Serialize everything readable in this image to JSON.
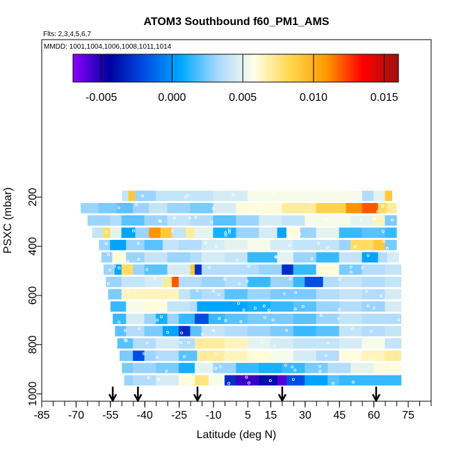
{
  "chart_data": {
    "type": "heatmap",
    "title": "ATOM3 Southbound f60_PM1_AMS",
    "flights_label": "Flts: 2,3,4,5,6,7",
    "mmdd_label": "MMDD: 1001,1004,1006,1008,1011,1014",
    "xlabel": "Latitude (deg N)",
    "ylabel": "PSXC (mbar)",
    "xlim": [
      -85,
      85
    ],
    "ylim": [
      1030,
      -440
    ],
    "x_ticks": [
      -85,
      -70,
      -55,
      -40,
      -25,
      -10,
      5,
      15,
      30,
      45,
      60,
      75
    ],
    "x_tick_labels": [
      "-85",
      "-70",
      "-55",
      "-40",
      "-25",
      "-10",
      "5",
      "15",
      "30",
      "45",
      "60",
      "75"
    ],
    "y_ticks": [
      200,
      400,
      600,
      800,
      1000
    ],
    "y_tick_labels": [
      "200",
      "400",
      "600",
      "800",
      "1000"
    ],
    "colorbar": {
      "range": [
        -0.007,
        0.016
      ],
      "ticks": [
        -0.005,
        0.0,
        0.005,
        0.01,
        0.015
      ],
      "tick_labels": [
        "-0.005",
        "0.000",
        "0.005",
        "0.010",
        "0.015"
      ],
      "colors": [
        "#8b00ff",
        "#00009e",
        "#0050e6",
        "#00aaff",
        "#aad8ff",
        "#ffffe8",
        "#ffd850",
        "#ff9a00",
        "#ff0000",
        "#a01010"
      ]
    },
    "arrows_lat": [
      -54,
      -43,
      -17,
      20,
      61
    ],
    "layers": [
      {
        "p": 195,
        "lat_min": -50,
        "lat_max": 68,
        "segments": [
          [
            -50,
            0.004
          ],
          [
            -47,
            0.009
          ],
          [
            -44,
            0.003
          ],
          [
            -35,
            0.004
          ],
          [
            -10,
            0.0045
          ],
          [
            5,
            0.0055
          ],
          [
            22,
            0.0055
          ],
          [
            40,
            0.0055
          ],
          [
            55,
            0.0035
          ],
          [
            60,
            0.005
          ],
          [
            65,
            0.009
          ]
        ]
      },
      {
        "p": 245,
        "lat_min": -68,
        "lat_max": 70,
        "segments": [
          [
            -68,
            0.003
          ],
          [
            -60,
            0.0025
          ],
          [
            -52,
            0.002
          ],
          [
            -45,
            0.003
          ],
          [
            -38,
            0.004
          ],
          [
            -30,
            0.003
          ],
          [
            -20,
            0.0025
          ],
          [
            -10,
            0.0045
          ],
          [
            0,
            0.006
          ],
          [
            20,
            0.007
          ],
          [
            35,
            0.0085
          ],
          [
            48,
            0.011
          ],
          [
            55,
            0.012
          ],
          [
            62,
            0.008
          ],
          [
            66,
            0.007
          ]
        ]
      },
      {
        "p": 295,
        "lat_min": -65,
        "lat_max": 70,
        "segments": [
          [
            -65,
            0.003
          ],
          [
            -55,
            0.0035
          ],
          [
            -50,
            0.002
          ],
          [
            -40,
            0.003
          ],
          [
            -30,
            0.004
          ],
          [
            -20,
            0.0035
          ],
          [
            -10,
            0.002
          ],
          [
            0,
            0.003
          ],
          [
            10,
            0.0045
          ],
          [
            20,
            0.004
          ],
          [
            30,
            0.0055
          ],
          [
            40,
            0.0055
          ],
          [
            50,
            0.005
          ],
          [
            60,
            0.0065
          ],
          [
            65,
            0.0025
          ]
        ]
      },
      {
        "p": 345,
        "lat_min": -63,
        "lat_max": 70,
        "segments": [
          [
            -63,
            0.004
          ],
          [
            -58,
            0.008
          ],
          [
            -55,
            0.005
          ],
          [
            -50,
            0.0005
          ],
          [
            -44,
            0.003
          ],
          [
            -38,
            0.011
          ],
          [
            -33,
            0.009
          ],
          [
            -28,
            0.004
          ],
          [
            -22,
            0.007
          ],
          [
            -18,
            0.005
          ],
          [
            -10,
            0.001
          ],
          [
            0,
            0.003
          ],
          [
            10,
            0.0045
          ],
          [
            18,
            0.0005
          ],
          [
            22,
            0.006
          ],
          [
            28,
            0.003
          ],
          [
            35,
            0.005
          ],
          [
            45,
            0.0015
          ],
          [
            55,
            0.002
          ],
          [
            65,
            0.0015
          ]
        ]
      },
      {
        "p": 395,
        "lat_min": -60,
        "lat_max": 70,
        "segments": [
          [
            -60,
            0.003
          ],
          [
            -55,
            0.0005
          ],
          [
            -48,
            0.003
          ],
          [
            -40,
            0.002
          ],
          [
            -32,
            0.004
          ],
          [
            -25,
            0.0035
          ],
          [
            -15,
            0.0045
          ],
          [
            -5,
            0.005
          ],
          [
            5,
            0.0055
          ],
          [
            15,
            0.0045
          ],
          [
            25,
            0.004
          ],
          [
            35,
            0.004
          ],
          [
            45,
            0.003
          ],
          [
            50,
            0.008
          ],
          [
            60,
            0.009
          ],
          [
            65,
            0.0025
          ]
        ]
      },
      {
        "p": 445,
        "lat_min": -59,
        "lat_max": 71,
        "segments": [
          [
            -59,
            0.003
          ],
          [
            -54,
            0.006
          ],
          [
            -48,
            0.003
          ],
          [
            -40,
            0.004
          ],
          [
            -30,
            0.003
          ],
          [
            -20,
            0.0035
          ],
          [
            -15,
            0.0045
          ],
          [
            -5,
            0.004
          ],
          [
            5,
            0.0015
          ],
          [
            18,
            0.005
          ],
          [
            25,
            0.003
          ],
          [
            35,
            0.0015
          ],
          [
            45,
            0.004
          ],
          [
            55,
            0.0005
          ],
          [
            62,
            0.0035
          ],
          [
            66,
            0.0045
          ]
        ]
      },
      {
        "p": 495,
        "lat_min": -58,
        "lat_max": 72,
        "segments": [
          [
            -58,
            0.003
          ],
          [
            -53,
            0.0005
          ],
          [
            -50,
            0.008
          ],
          [
            -45,
            0.003
          ],
          [
            -40,
            0.002
          ],
          [
            -30,
            0.0045
          ],
          [
            -20,
            0.009
          ],
          [
            -18,
            -0.003
          ],
          [
            -15,
            0.0035
          ],
          [
            0,
            0.0035
          ],
          [
            10,
            0.003
          ],
          [
            20,
            -0.003
          ],
          [
            25,
            0.0015
          ],
          [
            35,
            0.006
          ],
          [
            45,
            0.0025
          ],
          [
            55,
            0.0035
          ],
          [
            65,
            0.004
          ]
        ]
      },
      {
        "p": 545,
        "lat_min": -57,
        "lat_max": 72,
        "segments": [
          [
            -57,
            0.003
          ],
          [
            -50,
            0.004
          ],
          [
            -40,
            0.0045
          ],
          [
            -32,
            0.007
          ],
          [
            -28,
            0.012
          ],
          [
            -25,
            0.0035
          ],
          [
            -15,
            0.003
          ],
          [
            -5,
            0.0035
          ],
          [
            5,
            0.0015
          ],
          [
            15,
            0.003
          ],
          [
            25,
            0.0015
          ],
          [
            30,
            -0.002
          ],
          [
            38,
            0.0035
          ],
          [
            45,
            0.004
          ],
          [
            55,
            0.0035
          ],
          [
            65,
            0.004
          ]
        ]
      },
      {
        "p": 595,
        "lat_min": -56,
        "lat_max": 72,
        "segments": [
          [
            -56,
            0.0025
          ],
          [
            -50,
            0.0065
          ],
          [
            -35,
            0.0065
          ],
          [
            -25,
            0.004
          ],
          [
            -20,
            0.003
          ],
          [
            -15,
            0.0035
          ],
          [
            -5,
            0.002
          ],
          [
            5,
            0.003
          ],
          [
            15,
            0.0025
          ],
          [
            25,
            0.0025
          ],
          [
            35,
            0.0035
          ],
          [
            45,
            0.004
          ],
          [
            55,
            0.0035
          ],
          [
            65,
            0.0045
          ]
        ]
      },
      {
        "p": 645,
        "lat_min": -55,
        "lat_max": 72,
        "segments": [
          [
            -55,
            0.0015
          ],
          [
            -48,
            0.0055
          ],
          [
            -40,
            0.006
          ],
          [
            -30,
            0.004
          ],
          [
            -20,
            0.0035
          ],
          [
            -17,
            0.0005
          ],
          [
            -5,
            0.0005
          ],
          [
            5,
            0.001
          ],
          [
            15,
            0.0015
          ],
          [
            25,
            0.002
          ],
          [
            35,
            0.003
          ],
          [
            45,
            0.0035
          ],
          [
            55,
            0.003
          ],
          [
            65,
            0.0045
          ]
        ]
      },
      {
        "p": 695,
        "lat_min": -54,
        "lat_max": 72,
        "segments": [
          [
            -54,
            0.0015
          ],
          [
            -48,
            0.0045
          ],
          [
            -40,
            0.003
          ],
          [
            -35,
            0.001
          ],
          [
            -30,
            0.003
          ],
          [
            -25,
            0.0015
          ],
          [
            -18,
            -0.002
          ],
          [
            -12,
            0.0015
          ],
          [
            -5,
            0.002
          ],
          [
            5,
            0.0025
          ],
          [
            15,
            0.0025
          ],
          [
            25,
            0.002
          ],
          [
            35,
            0.003
          ],
          [
            45,
            0.004
          ],
          [
            55,
            0.0035
          ],
          [
            65,
            0.0035
          ]
        ]
      },
      {
        "p": 745,
        "lat_min": -53,
        "lat_max": 72,
        "segments": [
          [
            -53,
            0.002
          ],
          [
            -48,
            0.0035
          ],
          [
            -40,
            0.0025
          ],
          [
            -32,
            0.0005
          ],
          [
            -25,
            -0.003
          ],
          [
            -20,
            0.002
          ],
          [
            -15,
            0.004
          ],
          [
            -5,
            0.0035
          ],
          [
            5,
            0.003
          ],
          [
            15,
            0.0025
          ],
          [
            25,
            0.0015
          ],
          [
            35,
            0.002
          ],
          [
            45,
            0.004
          ],
          [
            55,
            0.0035
          ],
          [
            65,
            0.004
          ]
        ]
      },
      {
        "p": 795,
        "lat_min": -52,
        "lat_max": 72,
        "segments": [
          [
            -52,
            0.002
          ],
          [
            -45,
            0.0035
          ],
          [
            -35,
            0.0045
          ],
          [
            -25,
            0.0035
          ],
          [
            -18,
            0.007
          ],
          [
            -5,
            0.0065
          ],
          [
            5,
            0.005
          ],
          [
            15,
            0.0045
          ],
          [
            25,
            0.004
          ],
          [
            35,
            0.004
          ],
          [
            45,
            0.0045
          ],
          [
            55,
            0.0055
          ],
          [
            65,
            0.004
          ]
        ]
      },
      {
        "p": 845,
        "lat_min": -51,
        "lat_max": 72,
        "segments": [
          [
            -51,
            0.0025
          ],
          [
            -45,
            -0.002
          ],
          [
            -40,
            0.003
          ],
          [
            -35,
            0.0035
          ],
          [
            -25,
            0.002
          ],
          [
            -17,
            0.007
          ],
          [
            -5,
            0.0065
          ],
          [
            5,
            0.006
          ],
          [
            15,
            0.0055
          ],
          [
            25,
            0.0045
          ],
          [
            35,
            0.0035
          ],
          [
            45,
            0.006
          ],
          [
            55,
            0.0065
          ],
          [
            65,
            0.007
          ]
        ]
      },
      {
        "p": 895,
        "lat_min": -50,
        "lat_max": 72,
        "segments": [
          [
            -50,
            0.0025
          ],
          [
            -45,
            0.003
          ],
          [
            -35,
            0.0025
          ],
          [
            -25,
            0.001
          ],
          [
            -18,
            0.005
          ],
          [
            -10,
            0.003
          ],
          [
            0,
            0.0015
          ],
          [
            10,
            0.001
          ],
          [
            20,
            0.0015
          ],
          [
            30,
            0.0025
          ],
          [
            40,
            0.0035
          ],
          [
            50,
            0.005
          ],
          [
            60,
            0.006
          ]
        ]
      },
      {
        "p": 945,
        "lat_min": -49,
        "lat_max": 72,
        "segments": [
          [
            -49,
            0.003
          ],
          [
            -45,
            0.0035
          ],
          [
            -35,
            0.0045
          ],
          [
            -25,
            0.006
          ],
          [
            -18,
            0.0075
          ],
          [
            -12,
            0.0055
          ],
          [
            -5,
            -0.003
          ],
          [
            0,
            -0.0055
          ],
          [
            10,
            -0.004
          ],
          [
            18,
            -0.006
          ],
          [
            22,
            -0.002
          ],
          [
            30,
            0.0005
          ],
          [
            40,
            0.002
          ],
          [
            45,
            0.0015
          ],
          [
            55,
            0.0015
          ],
          [
            65,
            0.0015
          ]
        ]
      }
    ]
  }
}
